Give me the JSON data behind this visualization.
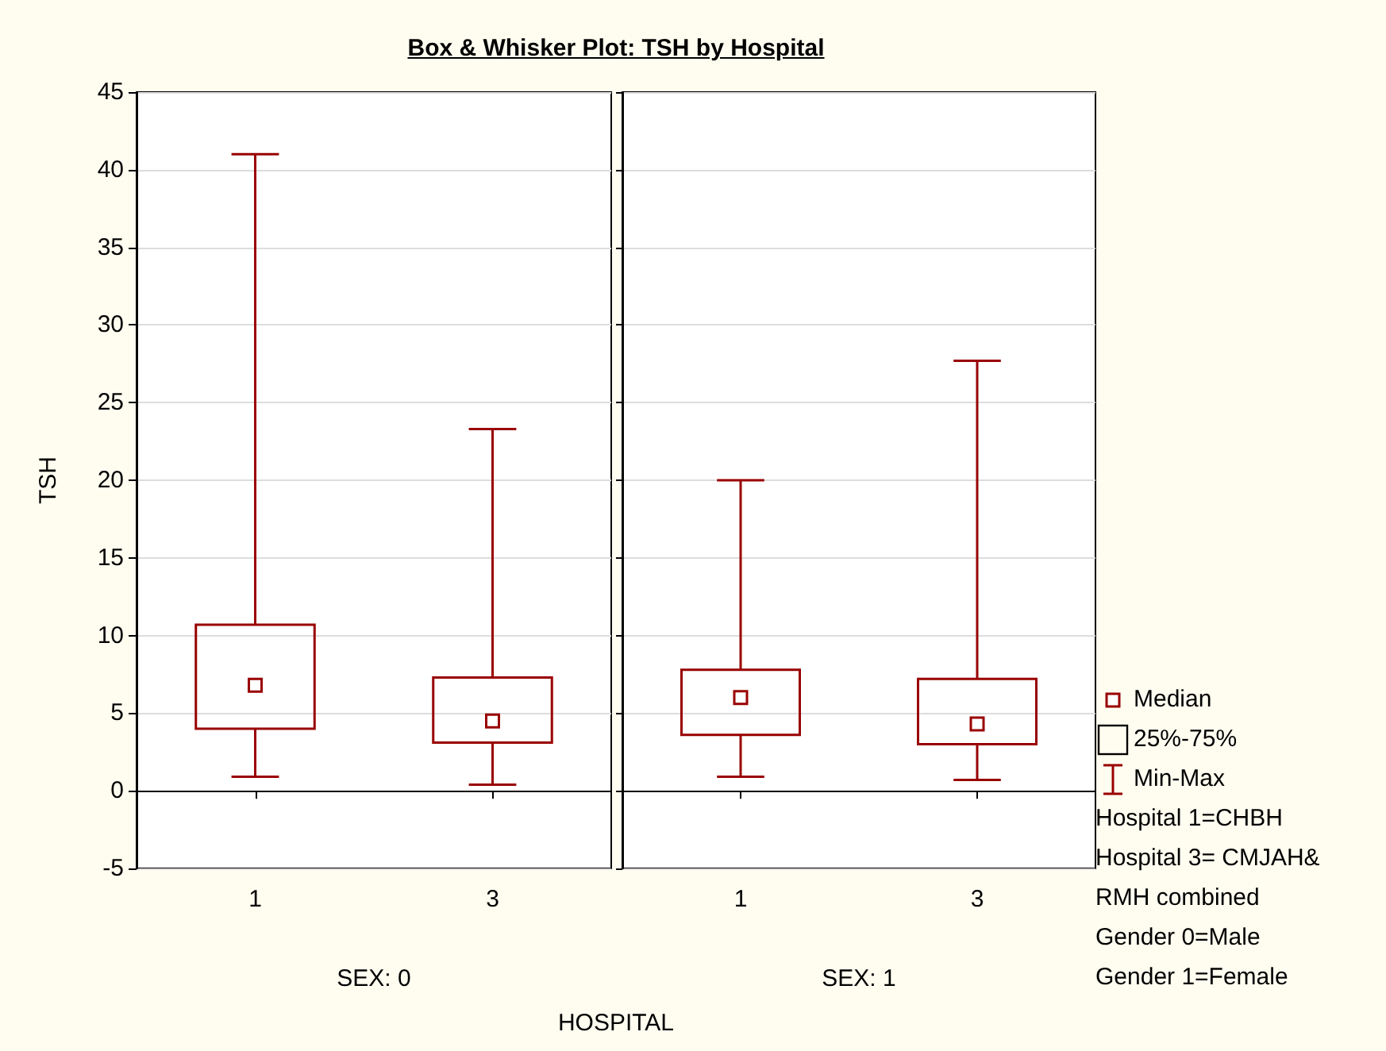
{
  "chart_data": [
    {
      "type": "box",
      "title": "Box & Whisker Plot:  TSH by Hospital",
      "ylabel": "TSH",
      "xlabel": "SEX: 0",
      "annotations": [
        "HOSPITAL"
      ],
      "categories": [
        "1",
        "3"
      ],
      "series": [
        {
          "color": "#990000",
          "boxes": [
            {
              "low": 0.9,
              "q1": 4.0,
              "median": 6.8,
              "q3": 10.7,
              "high": 41.0
            },
            {
              "low": 0.4,
              "q1": 3.1,
              "median": 4.5,
              "q3": 7.3,
              "high": 23.3
            }
          ]
        }
      ],
      "ylim": [
        -5,
        45
      ],
      "yticks": [
        -5,
        0,
        5,
        10,
        15,
        20,
        25,
        30,
        35,
        40,
        45
      ],
      "grid": "y"
    },
    {
      "type": "box",
      "xlabel": "SEX: 1",
      "annotations": [
        "Median",
        "25%-75%",
        "Min-Max",
        "Hospital 1=CHBH",
        "Hospital 3= CMJAH& RMH combined",
        "Gender 0=Male",
        "Gender 1=Female"
      ],
      "categories": [
        "1",
        "3"
      ],
      "series": [
        {
          "color": "#990000",
          "boxes": [
            {
              "low": 0.9,
              "q1": 3.6,
              "median": 6.0,
              "q3": 7.8,
              "high": 20.0
            },
            {
              "low": 0.7,
              "q1": 3.0,
              "median": 4.3,
              "q3": 7.2,
              "high": 27.7
            }
          ]
        }
      ],
      "ylim": [
        -5,
        45
      ],
      "yticks": [
        -5,
        0,
        5,
        10,
        15,
        20,
        25,
        30,
        35,
        40,
        45
      ],
      "grid": "y",
      "tick_labels": "x"
    }
  ]
}
